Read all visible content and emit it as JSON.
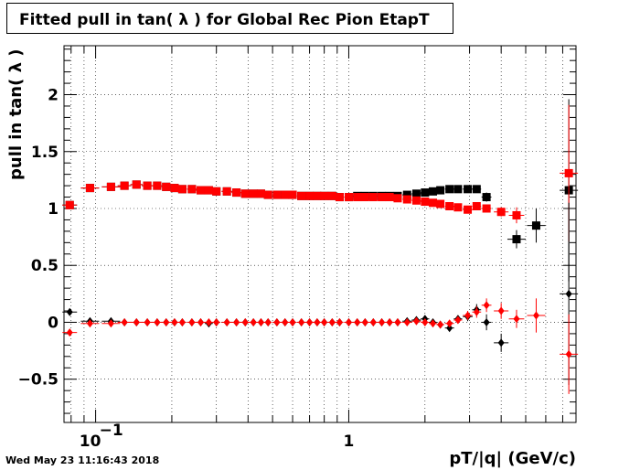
{
  "header": {
    "title": "Fitted pull in tan( λ ) for Global Rec Pion EtapT"
  },
  "footer": {
    "timestamp": "Wed May 23 11:16:43 2018"
  },
  "colors": {
    "series_black": "#000000",
    "series_red": "#ff0000",
    "grid": "#000000"
  },
  "chart_data": {
    "type": "scatter",
    "title": "Fitted pull in tan( λ ) for Global Rec Pion EtapT",
    "xlabel": "pT/|q| (GeV/c)",
    "ylabel": "pull in tan( λ )",
    "x_scale": "log",
    "xlim": [
      0.075,
      7.9
    ],
    "ylim": [
      -0.88,
      2.43
    ],
    "grid": true,
    "legend": "none",
    "y_ticks": [
      {
        "value": -0.5,
        "label": "−0.5"
      },
      {
        "value": 0,
        "label": "0"
      },
      {
        "value": 0.5,
        "label": "0.5"
      },
      {
        "value": 1,
        "label": "1"
      },
      {
        "value": 1.5,
        "label": "1.5"
      },
      {
        "value": 2,
        "label": "2"
      }
    ],
    "x_ticks": [
      {
        "value": 0.1,
        "base": "10",
        "exp": "−1"
      },
      {
        "value": 1,
        "base": "1",
        "exp": ""
      }
    ],
    "series": [
      {
        "marker": "square",
        "color": "#000000",
        "points": [
          [
            0.079,
            1.03
          ],
          [
            0.095,
            1.18
          ],
          [
            0.115,
            1.19
          ],
          [
            0.13,
            1.2
          ],
          [
            0.145,
            1.21
          ],
          [
            0.16,
            1.2
          ],
          [
            0.175,
            1.2
          ],
          [
            0.19,
            1.19
          ],
          [
            0.205,
            1.18
          ],
          [
            0.22,
            1.17
          ],
          [
            0.24,
            1.17
          ],
          [
            0.26,
            1.16
          ],
          [
            0.28,
            1.16
          ],
          [
            0.3,
            1.15
          ],
          [
            0.33,
            1.15
          ],
          [
            0.36,
            1.14
          ],
          [
            0.39,
            1.13
          ],
          [
            0.42,
            1.13
          ],
          [
            0.45,
            1.13
          ],
          [
            0.48,
            1.12
          ],
          [
            0.52,
            1.12
          ],
          [
            0.56,
            1.12
          ],
          [
            0.6,
            1.12
          ],
          [
            0.65,
            1.11
          ],
          [
            0.7,
            1.11
          ],
          [
            0.75,
            1.11
          ],
          [
            0.8,
            1.11
          ],
          [
            0.86,
            1.11
          ],
          [
            0.92,
            1.1
          ],
          [
            1.0,
            1.1
          ],
          [
            1.08,
            1.11
          ],
          [
            1.16,
            1.11
          ],
          [
            1.25,
            1.11
          ],
          [
            1.35,
            1.11
          ],
          [
            1.45,
            1.11
          ],
          [
            1.56,
            1.11
          ],
          [
            1.7,
            1.12
          ],
          [
            1.85,
            1.13
          ],
          [
            2.0,
            1.14
          ],
          [
            2.15,
            1.15
          ],
          [
            2.3,
            1.16
          ],
          [
            2.5,
            1.17
          ],
          [
            2.7,
            1.17
          ],
          [
            2.95,
            1.17
          ],
          [
            3.2,
            1.17
          ],
          [
            3.5,
            1.1
          ],
          [
            4.6,
            0.73
          ],
          [
            5.5,
            0.85
          ],
          [
            7.4,
            1.16
          ]
        ],
        "errors": [
          0.01,
          0.01,
          0.01,
          0.01,
          0.01,
          0.01,
          0.01,
          0.01,
          0.01,
          0.01,
          0.01,
          0.01,
          0.01,
          0.01,
          0.01,
          0.01,
          0.01,
          0.01,
          0.01,
          0.01,
          0.01,
          0.01,
          0.01,
          0.01,
          0.01,
          0.01,
          0.01,
          0.01,
          0.01,
          0.01,
          0.01,
          0.01,
          0.01,
          0.01,
          0.01,
          0.01,
          0.01,
          0.01,
          0.01,
          0.01,
          0.02,
          0.02,
          0.02,
          0.03,
          0.03,
          0.04,
          0.08,
          0.15,
          0.8
        ]
      },
      {
        "marker": "square",
        "color": "#ff0000",
        "points": [
          [
            0.079,
            1.03
          ],
          [
            0.095,
            1.18
          ],
          [
            0.115,
            1.19
          ],
          [
            0.13,
            1.2
          ],
          [
            0.145,
            1.21
          ],
          [
            0.16,
            1.2
          ],
          [
            0.175,
            1.2
          ],
          [
            0.19,
            1.19
          ],
          [
            0.205,
            1.18
          ],
          [
            0.22,
            1.17
          ],
          [
            0.24,
            1.17
          ],
          [
            0.26,
            1.16
          ],
          [
            0.28,
            1.16
          ],
          [
            0.3,
            1.15
          ],
          [
            0.33,
            1.15
          ],
          [
            0.36,
            1.14
          ],
          [
            0.39,
            1.13
          ],
          [
            0.42,
            1.13
          ],
          [
            0.45,
            1.13
          ],
          [
            0.48,
            1.12
          ],
          [
            0.52,
            1.12
          ],
          [
            0.56,
            1.12
          ],
          [
            0.6,
            1.12
          ],
          [
            0.65,
            1.11
          ],
          [
            0.7,
            1.11
          ],
          [
            0.75,
            1.11
          ],
          [
            0.8,
            1.11
          ],
          [
            0.86,
            1.11
          ],
          [
            0.92,
            1.1
          ],
          [
            1.0,
            1.1
          ],
          [
            1.08,
            1.1
          ],
          [
            1.16,
            1.1
          ],
          [
            1.25,
            1.1
          ],
          [
            1.35,
            1.1
          ],
          [
            1.45,
            1.1
          ],
          [
            1.56,
            1.09
          ],
          [
            1.7,
            1.08
          ],
          [
            1.85,
            1.07
          ],
          [
            2.0,
            1.06
          ],
          [
            2.15,
            1.05
          ],
          [
            2.3,
            1.04
          ],
          [
            2.5,
            1.02
          ],
          [
            2.7,
            1.01
          ],
          [
            2.95,
            0.99
          ],
          [
            3.2,
            1.02
          ],
          [
            3.5,
            1.0
          ],
          [
            4.0,
            0.97
          ],
          [
            4.6,
            0.94
          ],
          [
            7.4,
            1.31
          ]
        ],
        "errors": [
          0.01,
          0.01,
          0.01,
          0.01,
          0.01,
          0.01,
          0.01,
          0.01,
          0.01,
          0.01,
          0.01,
          0.01,
          0.01,
          0.01,
          0.01,
          0.01,
          0.01,
          0.01,
          0.01,
          0.01,
          0.01,
          0.01,
          0.01,
          0.01,
          0.01,
          0.01,
          0.01,
          0.01,
          0.01,
          0.01,
          0.01,
          0.01,
          0.01,
          0.01,
          0.01,
          0.01,
          0.01,
          0.01,
          0.01,
          0.01,
          0.01,
          0.01,
          0.02,
          0.02,
          0.02,
          0.03,
          0.04,
          0.07,
          0.6
        ]
      },
      {
        "marker": "diamond",
        "color": "#000000",
        "points": [
          [
            0.079,
            0.09
          ],
          [
            0.095,
            0.01
          ],
          [
            0.115,
            0.01
          ],
          [
            0.13,
            0.0
          ],
          [
            0.145,
            0.0
          ],
          [
            0.16,
            0.0
          ],
          [
            0.175,
            0.0
          ],
          [
            0.19,
            0.0
          ],
          [
            0.205,
            0.0
          ],
          [
            0.22,
            0.0
          ],
          [
            0.24,
            0.0
          ],
          [
            0.26,
            0.0
          ],
          [
            0.28,
            -0.01
          ],
          [
            0.3,
            0.0
          ],
          [
            0.33,
            0.0
          ],
          [
            0.36,
            0.0
          ],
          [
            0.39,
            0.0
          ],
          [
            0.42,
            0.0
          ],
          [
            0.45,
            0.0
          ],
          [
            0.48,
            0.0
          ],
          [
            0.52,
            0.0
          ],
          [
            0.56,
            0.0
          ],
          [
            0.6,
            0.0
          ],
          [
            0.65,
            0.0
          ],
          [
            0.7,
            0.0
          ],
          [
            0.75,
            0.0
          ],
          [
            0.8,
            0.0
          ],
          [
            0.86,
            0.0
          ],
          [
            0.92,
            0.0
          ],
          [
            1.0,
            0.0
          ],
          [
            1.08,
            0.0
          ],
          [
            1.16,
            0.0
          ],
          [
            1.25,
            0.0
          ],
          [
            1.35,
            0.0
          ],
          [
            1.45,
            0.0
          ],
          [
            1.56,
            0.0
          ],
          [
            1.7,
            0.01
          ],
          [
            1.85,
            0.02
          ],
          [
            2.0,
            0.03
          ],
          [
            2.15,
            0.0
          ],
          [
            2.3,
            -0.02
          ],
          [
            2.5,
            -0.05
          ],
          [
            2.7,
            0.03
          ],
          [
            2.95,
            0.05
          ],
          [
            3.2,
            0.11
          ],
          [
            3.5,
            0.0
          ],
          [
            4.0,
            -0.18
          ],
          [
            7.4,
            0.25
          ]
        ],
        "errors": [
          0.01,
          0.01,
          0.01,
          0.01,
          0.01,
          0.01,
          0.01,
          0.01,
          0.01,
          0.01,
          0.01,
          0.01,
          0.01,
          0.01,
          0.01,
          0.01,
          0.01,
          0.01,
          0.01,
          0.01,
          0.01,
          0.01,
          0.01,
          0.01,
          0.01,
          0.01,
          0.01,
          0.01,
          0.01,
          0.01,
          0.01,
          0.01,
          0.01,
          0.01,
          0.01,
          0.01,
          0.01,
          0.01,
          0.01,
          0.02,
          0.02,
          0.02,
          0.03,
          0.04,
          0.05,
          0.07,
          0.08,
          0.8
        ]
      },
      {
        "marker": "diamond",
        "color": "#ff0000",
        "points": [
          [
            0.079,
            -0.09
          ],
          [
            0.095,
            -0.01
          ],
          [
            0.115,
            -0.01
          ],
          [
            0.13,
            0.0
          ],
          [
            0.145,
            0.0
          ],
          [
            0.16,
            0.0
          ],
          [
            0.175,
            0.0
          ],
          [
            0.19,
            0.0
          ],
          [
            0.205,
            0.0
          ],
          [
            0.22,
            0.0
          ],
          [
            0.24,
            0.0
          ],
          [
            0.26,
            0.0
          ],
          [
            0.28,
            0.0
          ],
          [
            0.3,
            0.0
          ],
          [
            0.33,
            0.0
          ],
          [
            0.36,
            0.0
          ],
          [
            0.39,
            0.0
          ],
          [
            0.42,
            0.0
          ],
          [
            0.45,
            0.0
          ],
          [
            0.48,
            0.0
          ],
          [
            0.52,
            0.0
          ],
          [
            0.56,
            0.0
          ],
          [
            0.6,
            0.0
          ],
          [
            0.65,
            0.0
          ],
          [
            0.7,
            0.0
          ],
          [
            0.75,
            0.0
          ],
          [
            0.8,
            0.0
          ],
          [
            0.86,
            0.0
          ],
          [
            0.92,
            0.0
          ],
          [
            1.0,
            0.0
          ],
          [
            1.08,
            0.0
          ],
          [
            1.16,
            0.0
          ],
          [
            1.25,
            0.0
          ],
          [
            1.35,
            0.0
          ],
          [
            1.45,
            0.0
          ],
          [
            1.56,
            0.0
          ],
          [
            1.7,
            0.0
          ],
          [
            1.85,
            0.01
          ],
          [
            2.0,
            0.0
          ],
          [
            2.15,
            -0.01
          ],
          [
            2.3,
            -0.02
          ],
          [
            2.5,
            -0.01
          ],
          [
            2.7,
            0.02
          ],
          [
            2.95,
            0.06
          ],
          [
            3.2,
            0.09
          ],
          [
            3.5,
            0.15
          ],
          [
            4.0,
            0.1
          ],
          [
            4.6,
            0.03
          ],
          [
            5.5,
            0.06
          ],
          [
            7.4,
            -0.28
          ]
        ],
        "errors": [
          0.01,
          0.01,
          0.01,
          0.01,
          0.01,
          0.01,
          0.01,
          0.01,
          0.01,
          0.01,
          0.01,
          0.01,
          0.01,
          0.01,
          0.01,
          0.01,
          0.01,
          0.01,
          0.01,
          0.01,
          0.01,
          0.01,
          0.01,
          0.01,
          0.01,
          0.01,
          0.01,
          0.01,
          0.01,
          0.01,
          0.01,
          0.01,
          0.01,
          0.01,
          0.01,
          0.01,
          0.01,
          0.01,
          0.01,
          0.02,
          0.02,
          0.02,
          0.03,
          0.04,
          0.05,
          0.06,
          0.07,
          0.08,
          0.15,
          0.35
        ]
      }
    ]
  }
}
